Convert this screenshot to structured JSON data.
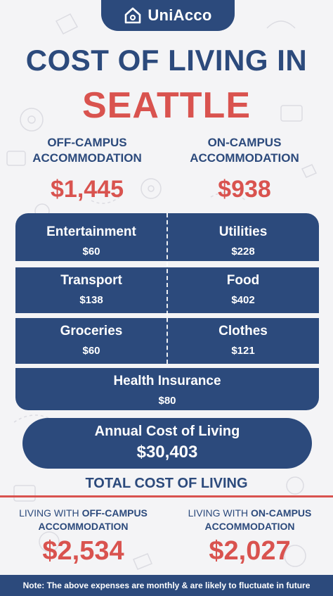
{
  "brand": {
    "name": "UniAcco"
  },
  "title": {
    "line1": "COST OF LIVING IN",
    "line2": "SEATTLE"
  },
  "accommodation": {
    "off_campus": {
      "label_line1": "OFF-CAMPUS",
      "label_line2": "ACCOMMODATION",
      "price": "$1,445"
    },
    "on_campus": {
      "label_line1": "ON-CAMPUS",
      "label_line2": "ACCOMMODATION",
      "price": "$938"
    }
  },
  "expenses": [
    {
      "name": "Entertainment",
      "value": "$60"
    },
    {
      "name": "Utilities",
      "value": "$228"
    },
    {
      "name": "Transport",
      "value": "$138"
    },
    {
      "name": "Food",
      "value": "$402"
    },
    {
      "name": "Groceries",
      "value": "$60"
    },
    {
      "name": "Clothes",
      "value": "$121"
    },
    {
      "name": "Health Insurance",
      "value": "$80"
    }
  ],
  "annual": {
    "label": "Annual Cost of Living",
    "amount": "$30,403"
  },
  "total": {
    "title": "TOTAL COST OF LIVING",
    "off_campus": {
      "prefix": "LIVING WITH ",
      "bold": "OFF-CAMPUS",
      "line2": "ACCOMMODATION",
      "amount": "$2,534"
    },
    "on_campus": {
      "prefix": "LIVING WITH ",
      "bold": "ON-CAMPUS",
      "line2": "ACCOMMODATION",
      "amount": "$2,027"
    }
  },
  "note": "Note: The above expenses are monthly & are likely to fluctuate in future",
  "colors": {
    "navy": "#2c4a7c",
    "red": "#d9534f",
    "background": "#f4f4f6"
  },
  "icons": [
    "home-icon"
  ]
}
